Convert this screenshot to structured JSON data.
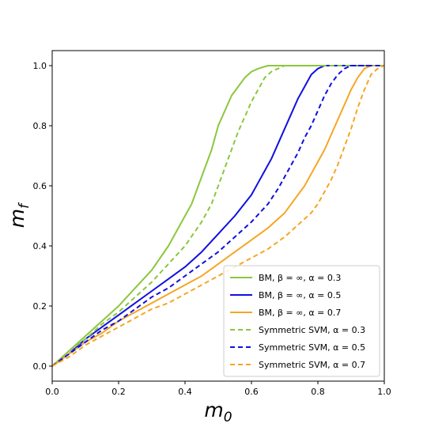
{
  "chart_data": {
    "type": "line",
    "title": "",
    "xlabel": "m0",
    "ylabel": "mf",
    "xlim": [
      0.0,
      1.0
    ],
    "ylim": [
      -0.05,
      1.05
    ],
    "xticks": [
      "0.0",
      "0.2",
      "0.4",
      "0.6",
      "0.8",
      "1.0"
    ],
    "yticks": [
      "0.0",
      "0.2",
      "0.4",
      "0.6",
      "0.8",
      "1.0"
    ],
    "grid": false,
    "legend_position": "bottom-right",
    "series": [
      {
        "name": "BM, β = ∞, α = 0.3",
        "color": "#8cc63e",
        "dash": "solid",
        "x": [
          0.0,
          0.05,
          0.1,
          0.15,
          0.2,
          0.25,
          0.3,
          0.35,
          0.4,
          0.42,
          0.44,
          0.46,
          0.48,
          0.5,
          0.52,
          0.54,
          0.56,
          0.58,
          0.6,
          0.62,
          0.65,
          0.7,
          0.75,
          0.8,
          0.85,
          0.9,
          0.95,
          1.0
        ],
        "y": [
          0.0,
          0.05,
          0.1,
          0.15,
          0.2,
          0.26,
          0.32,
          0.4,
          0.5,
          0.54,
          0.6,
          0.66,
          0.72,
          0.8,
          0.85,
          0.9,
          0.93,
          0.96,
          0.98,
          0.99,
          1.0,
          1.0,
          1.0,
          1.0,
          1.0,
          1.0,
          1.0,
          1.0
        ]
      },
      {
        "name": "BM, β = ∞, α = 0.5",
        "color": "#1010e0",
        "dash": "solid",
        "x": [
          0.0,
          0.05,
          0.1,
          0.15,
          0.2,
          0.25,
          0.3,
          0.35,
          0.4,
          0.45,
          0.5,
          0.55,
          0.6,
          0.62,
          0.64,
          0.66,
          0.68,
          0.7,
          0.72,
          0.74,
          0.76,
          0.78,
          0.8,
          0.82,
          0.84,
          0.86,
          0.9,
          0.95,
          1.0
        ],
        "y": [
          0.0,
          0.04,
          0.09,
          0.13,
          0.17,
          0.21,
          0.25,
          0.29,
          0.33,
          0.38,
          0.44,
          0.5,
          0.57,
          0.61,
          0.65,
          0.69,
          0.74,
          0.79,
          0.84,
          0.89,
          0.93,
          0.97,
          0.99,
          1.0,
          1.0,
          1.0,
          1.0,
          1.0,
          1.0
        ]
      },
      {
        "name": "BM, β = ∞, α = 0.7",
        "color": "#f5a623",
        "dash": "solid",
        "x": [
          0.0,
          0.05,
          0.1,
          0.15,
          0.2,
          0.25,
          0.3,
          0.35,
          0.4,
          0.45,
          0.5,
          0.55,
          0.6,
          0.65,
          0.7,
          0.72,
          0.74,
          0.76,
          0.78,
          0.8,
          0.82,
          0.84,
          0.86,
          0.88,
          0.9,
          0.92,
          0.94,
          0.96,
          1.0
        ],
        "y": [
          0.0,
          0.04,
          0.08,
          0.11,
          0.15,
          0.18,
          0.21,
          0.24,
          0.27,
          0.3,
          0.34,
          0.38,
          0.42,
          0.46,
          0.51,
          0.54,
          0.57,
          0.6,
          0.64,
          0.68,
          0.72,
          0.77,
          0.82,
          0.87,
          0.92,
          0.96,
          0.99,
          1.0,
          1.0
        ]
      },
      {
        "name": "Symmetric SVM, α = 0.3",
        "color": "#8cc63e",
        "dash": "dashed",
        "x": [
          0.0,
          0.05,
          0.1,
          0.15,
          0.2,
          0.25,
          0.3,
          0.35,
          0.4,
          0.45,
          0.48,
          0.5,
          0.52,
          0.54,
          0.56,
          0.58,
          0.6,
          0.62,
          0.64,
          0.66,
          0.68,
          0.7,
          0.75,
          0.8,
          0.9,
          1.0
        ],
        "y": [
          0.0,
          0.05,
          0.09,
          0.14,
          0.18,
          0.23,
          0.28,
          0.34,
          0.4,
          0.48,
          0.54,
          0.6,
          0.66,
          0.72,
          0.78,
          0.83,
          0.88,
          0.92,
          0.96,
          0.98,
          0.99,
          1.0,
          1.0,
          1.0,
          1.0,
          1.0
        ]
      },
      {
        "name": "Symmetric SVM, α = 0.5",
        "color": "#1010e0",
        "dash": "dashed",
        "x": [
          0.0,
          0.05,
          0.1,
          0.15,
          0.2,
          0.25,
          0.3,
          0.35,
          0.4,
          0.45,
          0.5,
          0.55,
          0.6,
          0.65,
          0.68,
          0.7,
          0.72,
          0.74,
          0.76,
          0.78,
          0.8,
          0.82,
          0.84,
          0.86,
          0.88,
          0.9,
          0.95,
          1.0
        ],
        "y": [
          0.0,
          0.04,
          0.08,
          0.12,
          0.15,
          0.19,
          0.23,
          0.26,
          0.3,
          0.34,
          0.38,
          0.43,
          0.48,
          0.54,
          0.59,
          0.63,
          0.67,
          0.71,
          0.76,
          0.8,
          0.85,
          0.9,
          0.94,
          0.97,
          0.99,
          1.0,
          1.0,
          1.0
        ]
      },
      {
        "name": "Symmetric SVM, α = 0.7",
        "color": "#f5a623",
        "dash": "dashed",
        "x": [
          0.0,
          0.05,
          0.1,
          0.15,
          0.2,
          0.25,
          0.3,
          0.35,
          0.4,
          0.45,
          0.5,
          0.55,
          0.6,
          0.65,
          0.7,
          0.75,
          0.78,
          0.8,
          0.82,
          0.84,
          0.86,
          0.88,
          0.9,
          0.92,
          0.94,
          0.96,
          0.98,
          1.0
        ],
        "y": [
          0.0,
          0.03,
          0.07,
          0.1,
          0.13,
          0.16,
          0.19,
          0.21,
          0.24,
          0.27,
          0.3,
          0.33,
          0.36,
          0.39,
          0.43,
          0.48,
          0.51,
          0.54,
          0.58,
          0.62,
          0.67,
          0.73,
          0.79,
          0.86,
          0.92,
          0.97,
          0.99,
          1.0
        ]
      }
    ]
  }
}
